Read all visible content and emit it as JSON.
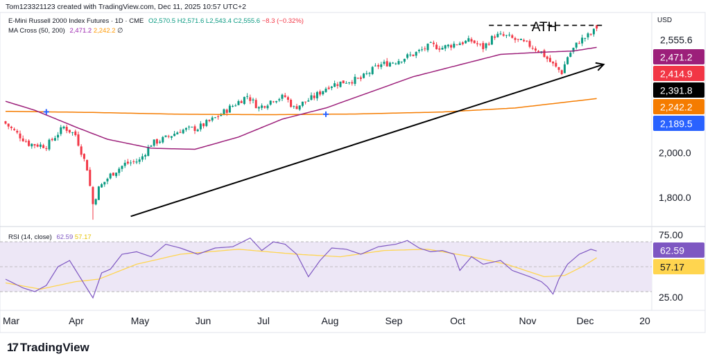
{
  "header": {
    "text": "Tom123321123 created with TradingView.com, Dec 11, 2025 10:57 UTC+2"
  },
  "legend": {
    "symbol": "E-Mini Russell 2000 Index Futures · 1D · CME",
    "ohlc": "O2,570.5  H2,571.6  L2,543.4  C2,555.6",
    "change": "−8.3 (−0.32%)",
    "ma_title": "MA Cross (50, 200)",
    "ma_fast": "2,471.2",
    "ma_slow": "2,242.2",
    "ma_extra": "∅",
    "rsi_title": "RSI (14, close)",
    "rsi_value": "62.59",
    "rsi_ma": "57.17"
  },
  "annotation": {
    "ath": "ATH"
  },
  "axis": {
    "currency": "USD"
  },
  "price_badges": [
    {
      "label": "2,555.6",
      "bg": "#ffffff",
      "fg": "#131722"
    },
    {
      "label": "2,471.2",
      "bg": "#9c1f7a",
      "fg": "#ffffff"
    },
    {
      "label": "2,414.9",
      "bg": "#f23645",
      "fg": "#ffffff"
    },
    {
      "label": "2,391.8",
      "bg": "#000000",
      "fg": "#ffffff"
    },
    {
      "label": "2,242.2",
      "bg": "#f57c00",
      "fg": "#ffffff"
    },
    {
      "label": "2,189.5",
      "bg": "#2962ff",
      "fg": "#ffffff"
    }
  ],
  "rsi_badges": [
    {
      "label": "62.59",
      "bg": "#7e57c2",
      "fg": "#ffffff"
    },
    {
      "label": "57.17",
      "bg": "#ffd54f",
      "fg": "#131722"
    }
  ],
  "footer": {
    "brand": "TradingView"
  },
  "colors": {
    "up": "#089981",
    "down": "#f23645",
    "ma_fast": "#9c1f7a",
    "ma_slow": "#f57c00",
    "rsi_line": "#7e57c2",
    "rsi_ma": "#ffd54f",
    "rsi_band": "#ede7f6",
    "trendline": "#000000"
  },
  "chart_data": [
    {
      "type": "candlestick",
      "title": "E-Mini Russell 2000 Index Futures · 1D · CME",
      "xlabel": "",
      "ylabel": "",
      "y_ticks": [
        1800,
        2000
      ],
      "y_tick_labels": [
        "1,800.0",
        "2,000.0"
      ],
      "x_tick_labels": [
        "Mar",
        "Apr",
        "May",
        "Jun",
        "Jul",
        "Aug",
        "Sep",
        "Oct",
        "Nov",
        "Dec",
        "20"
      ],
      "ylim": [
        1685,
        2615
      ],
      "grid": false,
      "anchors": [
        {
          "x": 0,
          "p": 2130
        },
        {
          "x": 8,
          "p": 2040
        },
        {
          "x": 14,
          "p": 2030
        },
        {
          "x": 20,
          "p": 2115
        },
        {
          "x": 24,
          "p": 2080
        },
        {
          "x": 28,
          "p": 1930
        },
        {
          "x": 30,
          "p": 1770
        },
        {
          "x": 32,
          "p": 1840
        },
        {
          "x": 36,
          "p": 1900
        },
        {
          "x": 41,
          "p": 1950
        },
        {
          "x": 46,
          "p": 1965
        },
        {
          "x": 50,
          "p": 2040
        },
        {
          "x": 55,
          "p": 2065
        },
        {
          "x": 60,
          "p": 2100
        },
        {
          "x": 66,
          "p": 2110
        },
        {
          "x": 72,
          "p": 2155
        },
        {
          "x": 78,
          "p": 2210
        },
        {
          "x": 83,
          "p": 2255
        },
        {
          "x": 87,
          "p": 2200
        },
        {
          "x": 92,
          "p": 2240
        },
        {
          "x": 96,
          "p": 2250
        },
        {
          "x": 99,
          "p": 2200
        },
        {
          "x": 106,
          "p": 2250
        },
        {
          "x": 111,
          "p": 2300
        },
        {
          "x": 117,
          "p": 2320
        },
        {
          "x": 122,
          "p": 2330
        },
        {
          "x": 128,
          "p": 2390
        },
        {
          "x": 134,
          "p": 2410
        },
        {
          "x": 140,
          "p": 2440
        },
        {
          "x": 146,
          "p": 2480
        },
        {
          "x": 150,
          "p": 2470
        },
        {
          "x": 155,
          "p": 2490
        },
        {
          "x": 160,
          "p": 2500
        },
        {
          "x": 164,
          "p": 2470
        },
        {
          "x": 168,
          "p": 2525
        },
        {
          "x": 172,
          "p": 2520
        },
        {
          "x": 176,
          "p": 2500
        },
        {
          "x": 180,
          "p": 2480
        },
        {
          "x": 184,
          "p": 2450
        },
        {
          "x": 186,
          "p": 2420
        },
        {
          "x": 189,
          "p": 2380
        },
        {
          "x": 191,
          "p": 2360
        },
        {
          "x": 193,
          "p": 2430
        },
        {
          "x": 197,
          "p": 2500
        },
        {
          "x": 201,
          "p": 2530
        },
        {
          "x": 203,
          "p": 2555.6
        }
      ],
      "current": {
        "open": 2570.5,
        "high": 2571.6,
        "low": 2543.4,
        "close": 2555.6
      },
      "ath": 2570,
      "ma_fast_anchors": [
        {
          "x": 0,
          "p": 2230
        },
        {
          "x": 10,
          "p": 2190
        },
        {
          "x": 25,
          "p": 2110
        },
        {
          "x": 35,
          "p": 2060
        },
        {
          "x": 50,
          "p": 2020
        },
        {
          "x": 65,
          "p": 2015
        },
        {
          "x": 80,
          "p": 2070
        },
        {
          "x": 95,
          "p": 2150
        },
        {
          "x": 110,
          "p": 2200
        },
        {
          "x": 125,
          "p": 2270
        },
        {
          "x": 140,
          "p": 2340
        },
        {
          "x": 155,
          "p": 2390
        },
        {
          "x": 170,
          "p": 2440
        },
        {
          "x": 185,
          "p": 2450
        },
        {
          "x": 195,
          "p": 2455
        },
        {
          "x": 203,
          "p": 2471.2
        }
      ],
      "ma_slow_anchors": [
        {
          "x": 0,
          "p": 2185
        },
        {
          "x": 30,
          "p": 2180
        },
        {
          "x": 60,
          "p": 2172
        },
        {
          "x": 90,
          "p": 2170
        },
        {
          "x": 120,
          "p": 2173
        },
        {
          "x": 150,
          "p": 2182
        },
        {
          "x": 175,
          "p": 2200
        },
        {
          "x": 203,
          "p": 2242.2
        }
      ],
      "cross_markers": [
        14,
        110
      ],
      "trendline": {
        "x1": 43,
        "p1": 1715,
        "x2": 203,
        "p2": 2395
      }
    },
    {
      "type": "line",
      "title": "RSI (14, close)",
      "y_ticks": [
        25,
        75
      ],
      "y_tick_labels": [
        "25.00",
        "75.00"
      ],
      "ylim": [
        20,
        80
      ],
      "bands": [
        30,
        50,
        70
      ],
      "rsi_anchors": [
        {
          "x": 0,
          "p": 40
        },
        {
          "x": 6,
          "p": 33
        },
        {
          "x": 10,
          "p": 30
        },
        {
          "x": 14,
          "p": 35
        },
        {
          "x": 18,
          "p": 50
        },
        {
          "x": 22,
          "p": 55
        },
        {
          "x": 26,
          "p": 40
        },
        {
          "x": 30,
          "p": 25
        },
        {
          "x": 33,
          "p": 45
        },
        {
          "x": 36,
          "p": 48
        },
        {
          "x": 40,
          "p": 60
        },
        {
          "x": 45,
          "p": 62
        },
        {
          "x": 50,
          "p": 58
        },
        {
          "x": 55,
          "p": 68
        },
        {
          "x": 60,
          "p": 65
        },
        {
          "x": 66,
          "p": 60
        },
        {
          "x": 72,
          "p": 65
        },
        {
          "x": 78,
          "p": 66
        },
        {
          "x": 84,
          "p": 73
        },
        {
          "x": 88,
          "p": 63
        },
        {
          "x": 92,
          "p": 70
        },
        {
          "x": 96,
          "p": 68
        },
        {
          "x": 100,
          "p": 60
        },
        {
          "x": 104,
          "p": 42
        },
        {
          "x": 108,
          "p": 55
        },
        {
          "x": 112,
          "p": 65
        },
        {
          "x": 117,
          "p": 64
        },
        {
          "x": 122,
          "p": 60
        },
        {
          "x": 128,
          "p": 66
        },
        {
          "x": 134,
          "p": 68
        },
        {
          "x": 138,
          "p": 71
        },
        {
          "x": 142,
          "p": 65
        },
        {
          "x": 146,
          "p": 62
        },
        {
          "x": 150,
          "p": 63
        },
        {
          "x": 154,
          "p": 60
        },
        {
          "x": 156,
          "p": 47
        },
        {
          "x": 160,
          "p": 58
        },
        {
          "x": 164,
          "p": 52
        },
        {
          "x": 170,
          "p": 55
        },
        {
          "x": 174,
          "p": 47
        },
        {
          "x": 180,
          "p": 42
        },
        {
          "x": 184,
          "p": 38
        },
        {
          "x": 186,
          "p": 34
        },
        {
          "x": 188,
          "p": 28
        },
        {
          "x": 190,
          "p": 40
        },
        {
          "x": 193,
          "p": 52
        },
        {
          "x": 197,
          "p": 60
        },
        {
          "x": 201,
          "p": 64
        },
        {
          "x": 203,
          "p": 62.59
        }
      ],
      "rsi_ma_anchors": [
        {
          "x": 0,
          "p": 37
        },
        {
          "x": 12,
          "p": 32
        },
        {
          "x": 24,
          "p": 38
        },
        {
          "x": 32,
          "p": 40
        },
        {
          "x": 45,
          "p": 52
        },
        {
          "x": 60,
          "p": 60
        },
        {
          "x": 80,
          "p": 64
        },
        {
          "x": 100,
          "p": 60
        },
        {
          "x": 115,
          "p": 58
        },
        {
          "x": 130,
          "p": 63
        },
        {
          "x": 145,
          "p": 64
        },
        {
          "x": 160,
          "p": 58
        },
        {
          "x": 172,
          "p": 52
        },
        {
          "x": 185,
          "p": 42
        },
        {
          "x": 192,
          "p": 43
        },
        {
          "x": 198,
          "p": 50
        },
        {
          "x": 203,
          "p": 57.17
        }
      ]
    }
  ]
}
